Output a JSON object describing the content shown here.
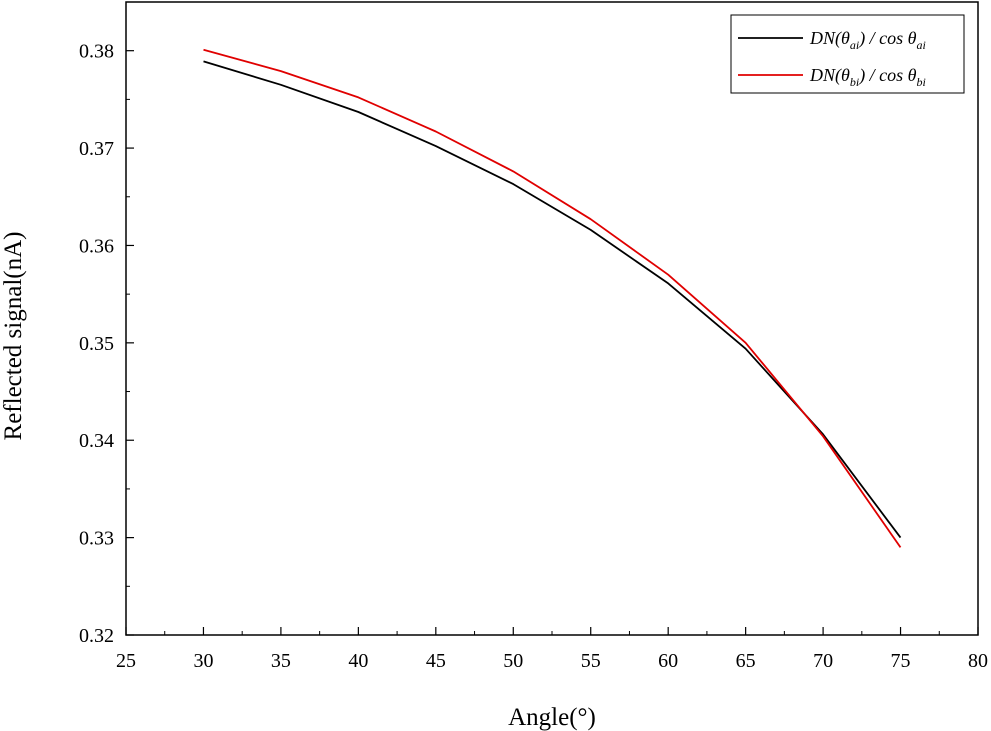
{
  "chart_data": {
    "type": "line",
    "title": "",
    "xlabel": "Angle(°)",
    "ylabel": "Reflected signal(nA)",
    "xlim": [
      25,
      80
    ],
    "ylim": [
      0.32,
      0.385
    ],
    "x_ticks": [
      25,
      30,
      35,
      40,
      45,
      50,
      55,
      60,
      65,
      70,
      75,
      80
    ],
    "y_ticks": [
      0.32,
      0.33,
      0.34,
      0.35,
      0.36,
      0.37,
      0.38
    ],
    "x_tick_labels": [
      "25",
      "30",
      "35",
      "40",
      "45",
      "50",
      "55",
      "60",
      "65",
      "70",
      "75",
      "80"
    ],
    "y_tick_labels": [
      "0.32",
      "0.33",
      "0.34",
      "0.35",
      "0.36",
      "0.37",
      "0.38"
    ],
    "grid": false,
    "legend_position": "top-right",
    "x": [
      30,
      35,
      40,
      45,
      50,
      55,
      60,
      65,
      70,
      75
    ],
    "series": [
      {
        "name": "DN(θai) / cos θai",
        "name_parts": {
          "prefix": "DN(θ",
          "sub1": "ai",
          "middle": ") / cos θ",
          "sub2": "ai"
        },
        "color": "#000000",
        "values": [
          0.3789,
          0.3765,
          0.3737,
          0.3702,
          0.3663,
          0.3616,
          0.3561,
          0.3494,
          0.3406,
          0.33
        ]
      },
      {
        "name": "DN(θbi) / cos θbi",
        "name_parts": {
          "prefix": "DN(θ",
          "sub1": "bi",
          "middle": ") / cos θ",
          "sub2": "bi"
        },
        "color": "#e00000",
        "values": [
          0.3801,
          0.3779,
          0.3752,
          0.3717,
          0.3676,
          0.3627,
          0.357,
          0.35,
          0.3404,
          0.329
        ]
      }
    ]
  }
}
